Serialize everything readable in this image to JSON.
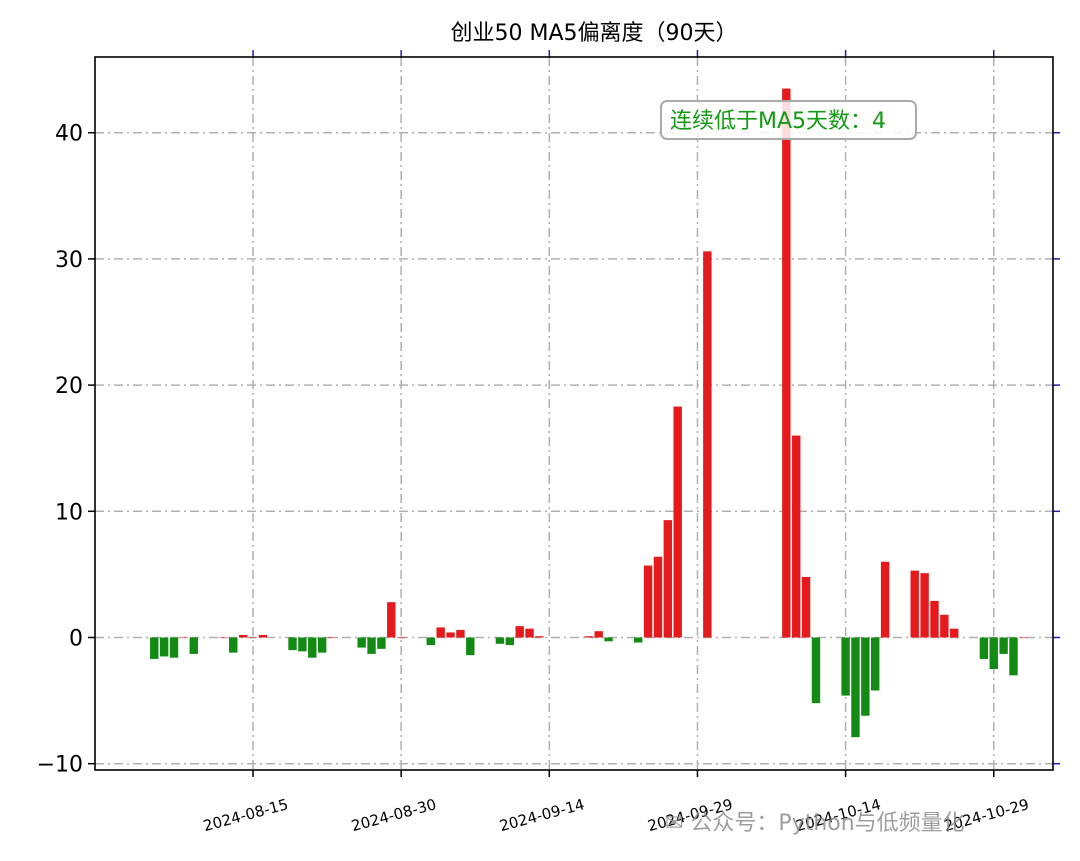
{
  "chart_data": {
    "type": "bar",
    "title": "创业50 MA5偏离度（90天）",
    "xlabel": "",
    "ylabel": "",
    "ylim": [
      -10.5,
      46
    ],
    "x_range": [
      "2024-07-30",
      "2024-11-04"
    ],
    "yticks": [
      -10,
      0,
      10,
      20,
      30,
      40
    ],
    "ytick_labels": [
      "−10",
      "0",
      "10",
      "20",
      "30",
      "40"
    ],
    "xticks": [
      "2024-08-15",
      "2024-08-30",
      "2024-09-14",
      "2024-09-29",
      "2024-10-14",
      "2024-10-29"
    ],
    "grid": true,
    "positive_color": "#e41a1c",
    "negative_color": "#138a13",
    "annotation": {
      "text": "连续低于MA5天数：4",
      "color": "#139a13",
      "position": "top-right"
    },
    "watermark": "公众号：Python与低频量化",
    "x": [
      "2024-08-05",
      "2024-08-06",
      "2024-08-07",
      "2024-08-08",
      "2024-08-09",
      "2024-08-12",
      "2024-08-13",
      "2024-08-14",
      "2024-08-15",
      "2024-08-16",
      "2024-08-19",
      "2024-08-20",
      "2024-08-21",
      "2024-08-22",
      "2024-08-23",
      "2024-08-26",
      "2024-08-27",
      "2024-08-28",
      "2024-08-29",
      "2024-08-30",
      "2024-09-02",
      "2024-09-03",
      "2024-09-04",
      "2024-09-05",
      "2024-09-06",
      "2024-09-09",
      "2024-09-10",
      "2024-09-11",
      "2024-09-12",
      "2024-09-13",
      "2024-09-18",
      "2024-09-19",
      "2024-09-20",
      "2024-09-23",
      "2024-09-24",
      "2024-09-25",
      "2024-09-26",
      "2024-09-27",
      "2024-09-30",
      "2024-10-08",
      "2024-10-09",
      "2024-10-10",
      "2024-10-11",
      "2024-10-14",
      "2024-10-15",
      "2024-10-16",
      "2024-10-17",
      "2024-10-18",
      "2024-10-21",
      "2024-10-22",
      "2024-10-23",
      "2024-10-24",
      "2024-10-25",
      "2024-10-28",
      "2024-10-29",
      "2024-10-30",
      "2024-10-31",
      "2024-11-01"
    ],
    "values": [
      -1.7,
      -1.5,
      -1.6,
      0.0,
      -1.3,
      0.0,
      -1.2,
      0.2,
      0.0,
      0.2,
      -1.0,
      -1.1,
      -1.6,
      -1.2,
      0.0,
      -0.8,
      -1.3,
      -0.9,
      2.8,
      0.0,
      -0.6,
      0.8,
      0.4,
      0.6,
      -1.4,
      -0.5,
      -0.6,
      0.9,
      0.7,
      0.1,
      0.1,
      0.5,
      -0.3,
      -0.4,
      5.7,
      6.4,
      9.3,
      18.3,
      30.6,
      43.5,
      16.0,
      4.8,
      -5.2,
      -4.6,
      -7.9,
      -6.2,
      -4.2,
      6.0,
      5.3,
      5.1,
      2.9,
      1.8,
      0.7,
      -1.7,
      -2.5,
      -1.3,
      -3.0,
      0.0
    ]
  }
}
